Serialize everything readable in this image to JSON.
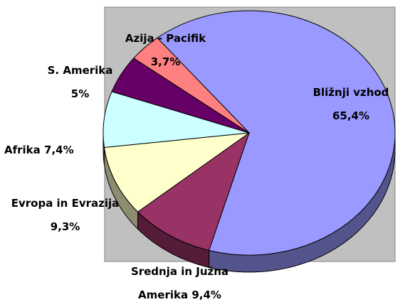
{
  "chart_data": {
    "type": "pie",
    "categories": [
      "Bližnji vzhod",
      "Srednja in Južna Amerika",
      "Evropa in Evrazija",
      "Afrika",
      "S. Amerika",
      "Azija - Pacifik"
    ],
    "values": [
      65.4,
      9.4,
      9.3,
      7.4,
      5,
      3.7
    ],
    "value_labels": [
      "65,4%",
      "9,4%",
      "9,3%",
      "7,4%",
      "5%",
      "3,7%"
    ],
    "colors": [
      "#9999ff",
      "#993366",
      "#ffffcc",
      "#ccffff",
      "#660066",
      "#ff8080"
    ]
  }
}
